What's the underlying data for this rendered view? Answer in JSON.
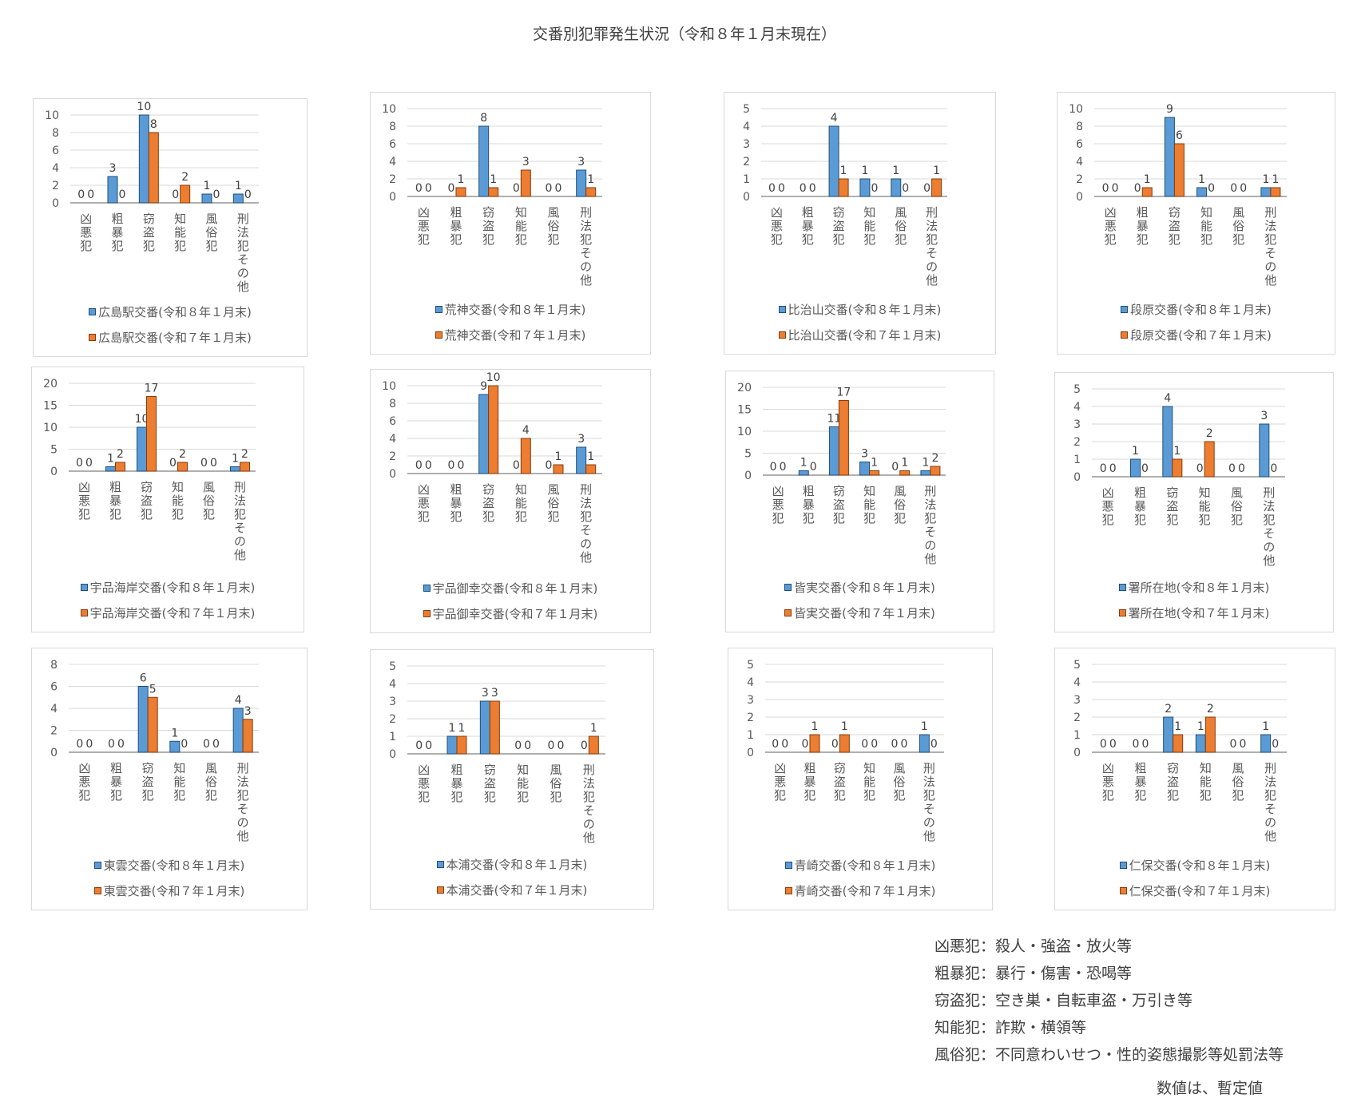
{
  "title": "交番別犯罪発生状況（令和８年１月末現在）",
  "colors": {
    "series_current": "#5b9bd5",
    "series_previous": "#ed7d31",
    "gridline": "#d9d9d9",
    "axis": "#595959"
  },
  "chart_data": [
    {
      "type": "bar",
      "categories": [
        "凶悪犯",
        "粗暴犯",
        "窃盗犯",
        "知能犯",
        "風俗犯",
        "刑法犯その他"
      ],
      "ylim": [
        0,
        10
      ],
      "yticks": [
        0,
        2,
        4,
        6,
        8,
        10
      ],
      "series": [
        {
          "name": "広島駅交番(令和８年１月末)",
          "values": [
            0,
            3,
            10,
            0,
            1,
            1
          ]
        },
        {
          "name": "広島駅交番(令和７年１月末)",
          "values": [
            0,
            0,
            8,
            2,
            0,
            0
          ]
        }
      ]
    },
    {
      "type": "bar",
      "categories": [
        "凶悪犯",
        "粗暴犯",
        "窃盗犯",
        "知能犯",
        "風俗犯",
        "刑法犯その他"
      ],
      "ylim": [
        0,
        10
      ],
      "yticks": [
        0,
        2,
        4,
        6,
        8,
        10
      ],
      "series": [
        {
          "name": "荒神交番(令和８年１月末)",
          "values": [
            0,
            0,
            8,
            0,
            0,
            3
          ]
        },
        {
          "name": "荒神交番(令和７年１月末)",
          "values": [
            0,
            1,
            1,
            3,
            0,
            1
          ]
        }
      ]
    },
    {
      "type": "bar",
      "categories": [
        "凶悪犯",
        "粗暴犯",
        "窃盗犯",
        "知能犯",
        "風俗犯",
        "刑法犯その他"
      ],
      "ylim": [
        0,
        5
      ],
      "yticks": [
        0,
        1,
        2,
        3,
        4,
        5
      ],
      "series": [
        {
          "name": "比治山交番(令和８年１月末)",
          "values": [
            0,
            0,
            4,
            1,
            1,
            0
          ]
        },
        {
          "name": "比治山交番(令和７年１月末)",
          "values": [
            0,
            0,
            1,
            0,
            0,
            1
          ]
        }
      ]
    },
    {
      "type": "bar",
      "categories": [
        "凶悪犯",
        "粗暴犯",
        "窃盗犯",
        "知能犯",
        "風俗犯",
        "刑法犯その他"
      ],
      "ylim": [
        0,
        10
      ],
      "yticks": [
        0,
        2,
        4,
        6,
        8,
        10
      ],
      "series": [
        {
          "name": "段原交番(令和８年１月末)",
          "values": [
            0,
            0,
            9,
            1,
            0,
            1
          ]
        },
        {
          "name": "段原交番(令和７年１月末)",
          "values": [
            0,
            1,
            6,
            0,
            0,
            1
          ]
        }
      ]
    },
    {
      "type": "bar",
      "categories": [
        "凶悪犯",
        "粗暴犯",
        "窃盗犯",
        "知能犯",
        "風俗犯",
        "刑法犯その他"
      ],
      "ylim": [
        0,
        20
      ],
      "yticks": [
        0,
        5,
        10,
        15,
        20
      ],
      "series": [
        {
          "name": "宇品海岸交番(令和８年１月末)",
          "values": [
            0,
            1,
            10,
            0,
            0,
            1
          ]
        },
        {
          "name": "宇品海岸交番(令和７年１月末)",
          "values": [
            0,
            2,
            17,
            2,
            0,
            2
          ]
        }
      ]
    },
    {
      "type": "bar",
      "categories": [
        "凶悪犯",
        "粗暴犯",
        "窃盗犯",
        "知能犯",
        "風俗犯",
        "刑法犯その他"
      ],
      "ylim": [
        0,
        10
      ],
      "yticks": [
        0,
        2,
        4,
        6,
        8,
        10
      ],
      "series": [
        {
          "name": "宇品御幸交番(令和８年１月末)",
          "values": [
            0,
            0,
            9,
            0,
            0,
            3
          ]
        },
        {
          "name": "宇品御幸交番(令和７年１月末)",
          "values": [
            0,
            0,
            10,
            4,
            1,
            1
          ]
        }
      ]
    },
    {
      "type": "bar",
      "categories": [
        "凶悪犯",
        "粗暴犯",
        "窃盗犯",
        "知能犯",
        "風俗犯",
        "刑法犯その他"
      ],
      "ylim": [
        0,
        20
      ],
      "yticks": [
        0,
        5,
        10,
        15,
        20
      ],
      "series": [
        {
          "name": "皆実交番(令和８年１月末)",
          "values": [
            0,
            1,
            11,
            3,
            0,
            1
          ]
        },
        {
          "name": "皆実交番(令和７年１月末)",
          "values": [
            0,
            0,
            17,
            1,
            1,
            2
          ]
        }
      ]
    },
    {
      "type": "bar",
      "categories": [
        "凶悪犯",
        "粗暴犯",
        "窃盗犯",
        "知能犯",
        "風俗犯",
        "刑法犯その他"
      ],
      "ylim": [
        0,
        5
      ],
      "yticks": [
        0,
        1,
        2,
        3,
        4,
        5
      ],
      "series": [
        {
          "name": "署所在地(令和８年１月末)",
          "values": [
            0,
            1,
            4,
            0,
            0,
            3
          ]
        },
        {
          "name": "署所在地(令和７年１月末)",
          "values": [
            0,
            0,
            1,
            2,
            0,
            0
          ]
        }
      ]
    },
    {
      "type": "bar",
      "categories": [
        "凶悪犯",
        "粗暴犯",
        "窃盗犯",
        "知能犯",
        "風俗犯",
        "刑法犯その他"
      ],
      "ylim": [
        0,
        8
      ],
      "yticks": [
        0,
        2,
        4,
        6,
        8
      ],
      "series": [
        {
          "name": "東雲交番(令和８年１月末)",
          "values": [
            0,
            0,
            6,
            1,
            0,
            4
          ]
        },
        {
          "name": "東雲交番(令和７年１月末)",
          "values": [
            0,
            0,
            5,
            0,
            0,
            3
          ]
        }
      ]
    },
    {
      "type": "bar",
      "categories": [
        "凶悪犯",
        "粗暴犯",
        "窃盗犯",
        "知能犯",
        "風俗犯",
        "刑法犯その他"
      ],
      "ylim": [
        0,
        5
      ],
      "yticks": [
        0,
        1,
        2,
        3,
        4,
        5
      ],
      "series": [
        {
          "name": "本浦交番(令和８年１月末)",
          "values": [
            0,
            1,
            3,
            0,
            0,
            0
          ]
        },
        {
          "name": "本浦交番(令和７年１月末)",
          "values": [
            0,
            1,
            3,
            0,
            0,
            1
          ]
        }
      ]
    },
    {
      "type": "bar",
      "categories": [
        "凶悪犯",
        "粗暴犯",
        "窃盗犯",
        "知能犯",
        "風俗犯",
        "刑法犯その他"
      ],
      "ylim": [
        0,
        5
      ],
      "yticks": [
        0,
        1,
        2,
        3,
        4,
        5
      ],
      "series": [
        {
          "name": "青崎交番(令和８年１月末)",
          "values": [
            0,
            0,
            0,
            0,
            0,
            1
          ]
        },
        {
          "name": "青崎交番(令和７年１月末)",
          "values": [
            0,
            1,
            1,
            0,
            0,
            0
          ]
        }
      ]
    },
    {
      "type": "bar",
      "categories": [
        "凶悪犯",
        "粗暴犯",
        "窃盗犯",
        "知能犯",
        "風俗犯",
        "刑法犯その他"
      ],
      "ylim": [
        0,
        5
      ],
      "yticks": [
        0,
        1,
        2,
        3,
        4,
        5
      ],
      "series": [
        {
          "name": "仁保交番(令和８年１月末)",
          "values": [
            0,
            0,
            2,
            1,
            0,
            1
          ]
        },
        {
          "name": "仁保交番(令和７年１月末)",
          "values": [
            0,
            0,
            1,
            2,
            0,
            0
          ]
        }
      ]
    }
  ],
  "notes": [
    "凶悪犯：殺人・強盗・放火等",
    "粗暴犯：暴行・傷害・恐喝等",
    "窃盗犯：空き巣・自転車盗・万引き等",
    "知能犯：詐欺・横領等",
    "風俗犯：不同意わいせつ・性的姿態撮影等処罰法等"
  ],
  "footnote": "数値は、暫定値"
}
